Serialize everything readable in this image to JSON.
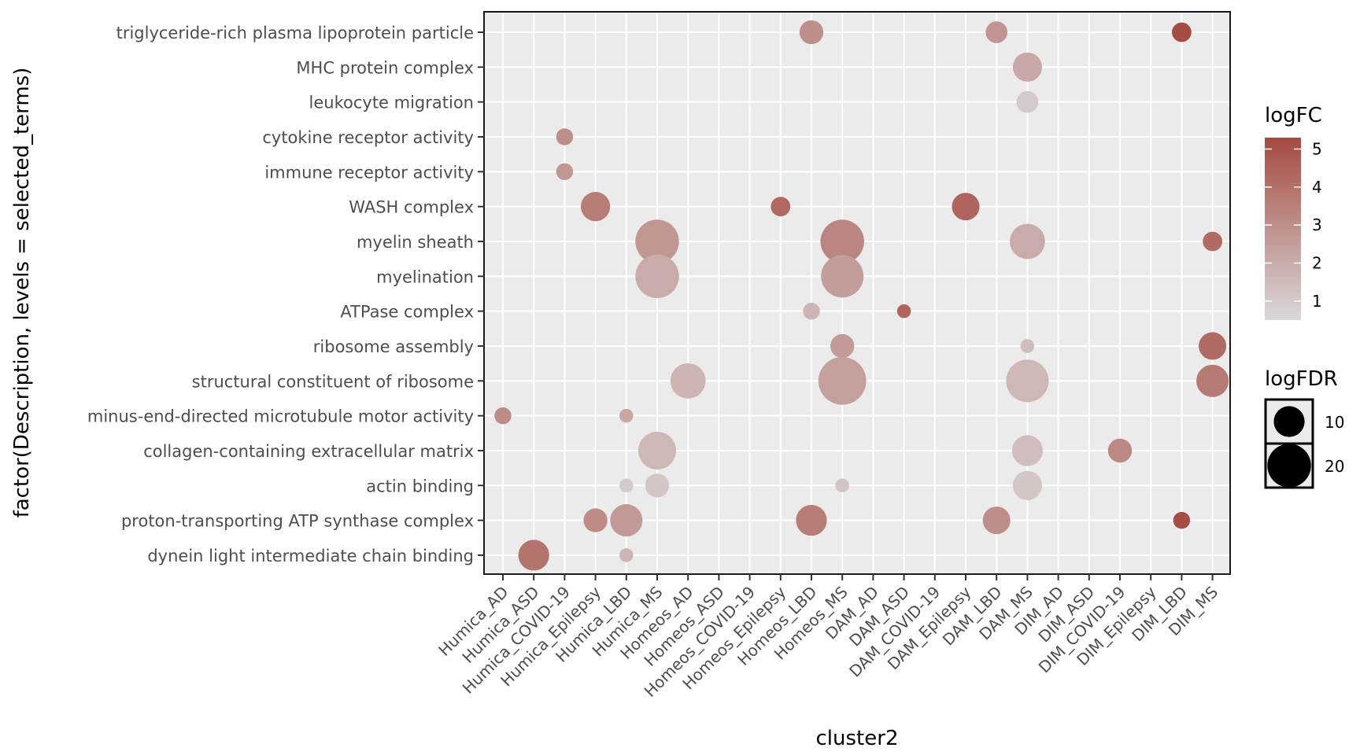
{
  "chart_data": {
    "type": "scatter",
    "xlabel": "cluster2",
    "ylabel": "factor(Description, levels = selected_terms)",
    "categories_x": [
      "Humica_AD",
      "Humica_ASD",
      "Humica_COVID-19",
      "Humica_Epilepsy",
      "Humica_LBD",
      "Humica_MS",
      "Homeos_AD",
      "Homeos_ASD",
      "Homeos_COVID-19",
      "Homeos_Epilepsy",
      "Homeos_LBD",
      "Homeos_MS",
      "DAM_AD",
      "DAM_ASD",
      "DAM_COVID-19",
      "DAM_Epilepsy",
      "DAM_LBD",
      "DAM_MS",
      "DIM_AD",
      "DIM_ASD",
      "DIM_COVID-19",
      "DIM_Epilepsy",
      "DIM_LBD",
      "DIM_MS"
    ],
    "categories_y": [
      "triglyceride-rich plasma lipoprotein particle",
      "MHC protein complex",
      "leukocyte migration",
      "cytokine receptor activity",
      "immune receptor activity",
      "WASH complex",
      "myelin sheath",
      "myelination",
      "ATPase complex",
      "ribosome assembly",
      "structural constituent of ribosome",
      "minus-end-directed microtubule motor activity",
      "collagen-containing extracellular matrix",
      "actin binding",
      "proton-transporting ATP synthase complex",
      "dynein light intermediate chain binding"
    ],
    "grid": true,
    "color_legend": {
      "title": "logFC",
      "ticks": [
        1,
        2,
        3,
        4,
        5
      ],
      "range": [
        0.5,
        5.3
      ],
      "low_color": "#d9d9d9",
      "high_color": "#a54a42"
    },
    "size_legend": {
      "title": "logFDR",
      "ticks": [
        10,
        20
      ]
    },
    "points": [
      {
        "x": "Homeos_LBD",
        "y": "triglyceride-rich plasma lipoprotein particle",
        "logFC": 3.0,
        "logFDR": 6
      },
      {
        "x": "DAM_LBD",
        "y": "triglyceride-rich plasma lipoprotein particle",
        "logFC": 2.8,
        "logFDR": 5
      },
      {
        "x": "DIM_LBD",
        "y": "triglyceride-rich plasma lipoprotein particle",
        "logFC": 5.2,
        "logFDR": 4
      },
      {
        "x": "DAM_MS",
        "y": "MHC protein complex",
        "logFC": 2.1,
        "logFDR": 9
      },
      {
        "x": "DAM_MS",
        "y": "leukocyte migration",
        "logFC": 1.0,
        "logFDR": 5
      },
      {
        "x": "Humica_COVID-19",
        "y": "cytokine receptor activity",
        "logFC": 3.0,
        "logFDR": 3
      },
      {
        "x": "Humica_COVID-19",
        "y": "immune receptor activity",
        "logFC": 2.7,
        "logFDR": 3
      },
      {
        "x": "Humica_Epilepsy",
        "y": "WASH complex",
        "logFC": 3.6,
        "logFDR": 9
      },
      {
        "x": "Homeos_Epilepsy",
        "y": "WASH complex",
        "logFC": 4.3,
        "logFDR": 4
      },
      {
        "x": "DAM_Epilepsy",
        "y": "WASH complex",
        "logFC": 4.4,
        "logFDR": 8
      },
      {
        "x": "Humica_MS",
        "y": "myelin sheath",
        "logFC": 2.7,
        "logFDR": 20
      },
      {
        "x": "Homeos_MS",
        "y": "myelin sheath",
        "logFC": 3.3,
        "logFDR": 20
      },
      {
        "x": "DAM_MS",
        "y": "myelin sheath",
        "logFC": 2.0,
        "logFDR": 13
      },
      {
        "x": "DIM_MS",
        "y": "myelin sheath",
        "logFC": 4.2,
        "logFDR": 4
      },
      {
        "x": "Humica_MS",
        "y": "myelination",
        "logFC": 2.0,
        "logFDR": 20
      },
      {
        "x": "Homeos_MS",
        "y": "myelination",
        "logFC": 2.5,
        "logFDR": 19
      },
      {
        "x": "Homeos_LBD",
        "y": "ATPase complex",
        "logFC": 1.7,
        "logFDR": 3
      },
      {
        "x": "DAM_ASD",
        "y": "ATPase complex",
        "logFC": 4.4,
        "logFDR": 2
      },
      {
        "x": "Homeos_MS",
        "y": "ribosome assembly",
        "logFC": 2.6,
        "logFDR": 6
      },
      {
        "x": "DAM_MS",
        "y": "ribosome assembly",
        "logFC": 1.4,
        "logFDR": 2
      },
      {
        "x": "DIM_MS",
        "y": "ribosome assembly",
        "logFC": 4.2,
        "logFDR": 8
      },
      {
        "x": "Homeos_AD",
        "y": "structural constituent of ribosome",
        "logFC": 1.7,
        "logFDR": 13
      },
      {
        "x": "Homeos_MS",
        "y": "structural constituent of ribosome",
        "logFC": 2.4,
        "logFDR": 24
      },
      {
        "x": "DAM_MS",
        "y": "structural constituent of ribosome",
        "logFC": 1.6,
        "logFDR": 19
      },
      {
        "x": "DIM_MS",
        "y": "structural constituent of ribosome",
        "logFC": 3.7,
        "logFDR": 11
      },
      {
        "x": "Humica_AD",
        "y": "minus-end-directed microtubule motor activity",
        "logFC": 3.1,
        "logFDR": 3
      },
      {
        "x": "Humica_LBD",
        "y": "minus-end-directed microtubule motor activity",
        "logFC": 2.2,
        "logFDR": 2
      },
      {
        "x": "Humica_MS",
        "y": "collagen-containing extracellular matrix",
        "logFC": 1.6,
        "logFDR": 15
      },
      {
        "x": "DAM_MS",
        "y": "collagen-containing extracellular matrix",
        "logFC": 1.4,
        "logFDR": 10
      },
      {
        "x": "DIM_COVID-19",
        "y": "collagen-containing extracellular matrix",
        "logFC": 3.2,
        "logFDR": 6
      },
      {
        "x": "Humica_LBD",
        "y": "actin binding",
        "logFC": 1.0,
        "logFDR": 2
      },
      {
        "x": "Humica_MS",
        "y": "actin binding",
        "logFC": 1.1,
        "logFDR": 6
      },
      {
        "x": "Homeos_MS",
        "y": "actin binding",
        "logFC": 1.2,
        "logFDR": 2
      },
      {
        "x": "DAM_MS",
        "y": "actin binding",
        "logFC": 1.1,
        "logFDR": 9
      },
      {
        "x": "Humica_Epilepsy",
        "y": "proton-transporting ATP synthase complex",
        "logFC": 3.1,
        "logFDR": 6
      },
      {
        "x": "Humica_LBD",
        "y": "proton-transporting ATP synthase complex",
        "logFC": 2.6,
        "logFDR": 11
      },
      {
        "x": "Homeos_LBD",
        "y": "proton-transporting ATP synthase complex",
        "logFC": 3.6,
        "logFDR": 10
      },
      {
        "x": "DAM_LBD",
        "y": "proton-transporting ATP synthase complex",
        "logFC": 3.0,
        "logFDR": 8
      },
      {
        "x": "DIM_LBD",
        "y": "proton-transporting ATP synthase complex",
        "logFC": 5.2,
        "logFDR": 3
      },
      {
        "x": "Humica_ASD",
        "y": "dynein light intermediate chain binding",
        "logFC": 3.9,
        "logFDR": 10
      },
      {
        "x": "Humica_LBD",
        "y": "dynein light intermediate chain binding",
        "logFC": 1.7,
        "logFDR": 2
      }
    ]
  }
}
